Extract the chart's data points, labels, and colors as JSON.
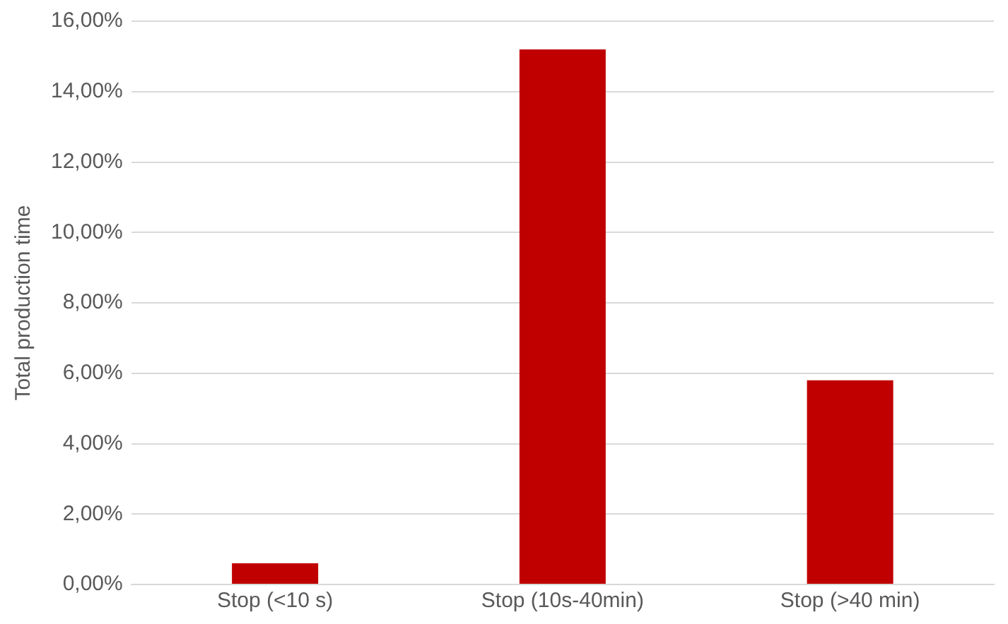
{
  "chart_data": {
    "type": "bar",
    "ylabel": "Total production time",
    "categories": [
      "Stop (<10 s)",
      "Stop (10s-40min)",
      "Stop (>40 min)"
    ],
    "values": [
      0.6,
      15.2,
      5.8
    ],
    "color": "#c00000",
    "ylim": [
      0,
      16
    ],
    "yticks": [
      {
        "value": 0,
        "label": "0,00%"
      },
      {
        "value": 2,
        "label": "2,00%"
      },
      {
        "value": 4,
        "label": "4,00%"
      },
      {
        "value": 6,
        "label": "6,00%"
      },
      {
        "value": 8,
        "label": "8,00%"
      },
      {
        "value": 10,
        "label": "10,00%"
      },
      {
        "value": 12,
        "label": "12,00%"
      },
      {
        "value": 14,
        "label": "14,00%"
      },
      {
        "value": 16,
        "label": "16,00%"
      }
    ],
    "grid": "y"
  }
}
